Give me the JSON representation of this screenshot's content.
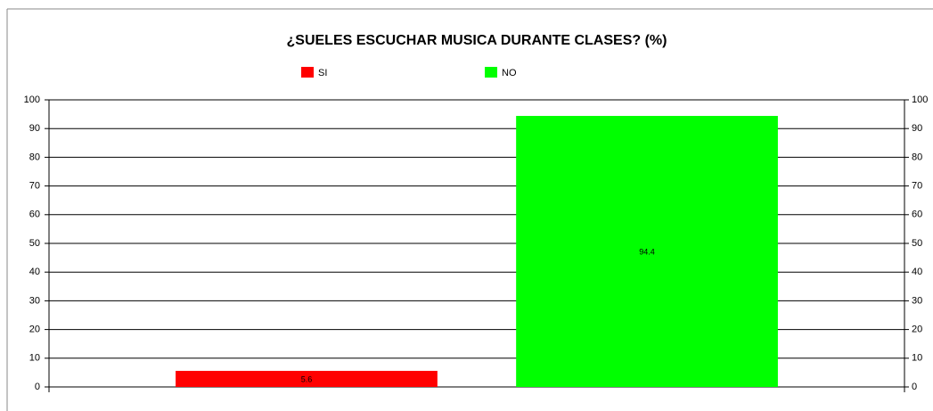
{
  "chart_data": {
    "type": "bar",
    "title": "¿SUELES ESCUCHAR MUSICA DURANTE CLASES? (%)",
    "categories": [
      null
    ],
    "series": [
      {
        "name": "SI",
        "color": "#ff0000",
        "values": [
          5.6
        ]
      },
      {
        "name": "NO",
        "color": "#00ff00",
        "values": [
          94.4
        ]
      }
    ],
    "ylim": [
      0,
      100
    ],
    "yticks": [
      0,
      10,
      20,
      30,
      40,
      50,
      60,
      70,
      80,
      90,
      100
    ],
    "y2lim": [
      0,
      100
    ],
    "y2ticks": [
      0,
      10,
      20,
      30,
      40,
      50,
      60,
      70,
      80,
      90,
      100
    ],
    "grid": true,
    "legend": "top"
  }
}
